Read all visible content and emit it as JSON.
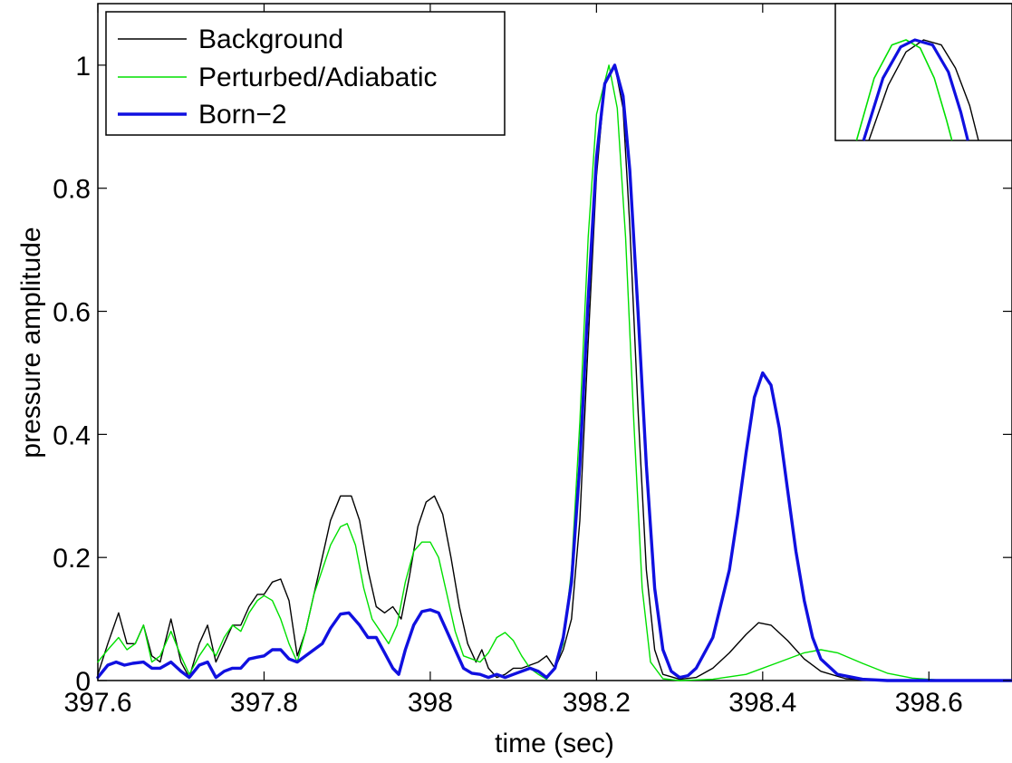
{
  "chart_data": {
    "type": "line",
    "xlabel": "time (sec)",
    "ylabel": "pressure amplitude",
    "xlim": [
      397.6,
      398.7
    ],
    "ylim": [
      0,
      1.1
    ],
    "xticks": [
      397.6,
      397.8,
      398,
      398.2,
      398.4,
      398.6
    ],
    "xtick_labels": [
      "397.6",
      "397.8",
      "398",
      "398.2",
      "398.4",
      "398.6"
    ],
    "yticks": [
      0,
      0.2,
      0.4,
      0.6,
      0.8,
      1
    ],
    "ytick_labels": [
      "0",
      "0.2",
      "0.4",
      "0.6",
      "0.8",
      "1"
    ],
    "grid": false,
    "legend_position": "top-left",
    "inset": "zoomed view of main peak near 398.22 s (top-right)",
    "series": [
      {
        "name": "Background",
        "color": "#000000",
        "line_width": "thin",
        "points": [
          [
            397.6,
            0.01
          ],
          [
            397.612,
            0.06
          ],
          [
            397.625,
            0.11
          ],
          [
            397.635,
            0.06
          ],
          [
            397.645,
            0.06
          ],
          [
            397.655,
            0.09
          ],
          [
            397.665,
            0.04
          ],
          [
            397.675,
            0.03
          ],
          [
            397.688,
            0.1
          ],
          [
            397.7,
            0.03
          ],
          [
            397.71,
            0.005
          ],
          [
            397.722,
            0.06
          ],
          [
            397.732,
            0.09
          ],
          [
            397.742,
            0.03
          ],
          [
            397.752,
            0.06
          ],
          [
            397.762,
            0.09
          ],
          [
            397.772,
            0.09
          ],
          [
            397.782,
            0.12
          ],
          [
            397.792,
            0.14
          ],
          [
            397.8,
            0.14
          ],
          [
            397.81,
            0.16
          ],
          [
            397.82,
            0.165
          ],
          [
            397.83,
            0.13
          ],
          [
            397.84,
            0.04
          ],
          [
            397.85,
            0.08
          ],
          [
            397.86,
            0.14
          ],
          [
            397.87,
            0.2
          ],
          [
            397.88,
            0.26
          ],
          [
            397.892,
            0.3
          ],
          [
            397.905,
            0.3
          ],
          [
            397.915,
            0.26
          ],
          [
            397.925,
            0.18
          ],
          [
            397.935,
            0.12
          ],
          [
            397.945,
            0.11
          ],
          [
            397.955,
            0.12
          ],
          [
            397.965,
            0.1
          ],
          [
            397.975,
            0.17
          ],
          [
            397.985,
            0.25
          ],
          [
            397.995,
            0.29
          ],
          [
            398.005,
            0.3
          ],
          [
            398.015,
            0.27
          ],
          [
            398.025,
            0.2
          ],
          [
            398.035,
            0.12
          ],
          [
            398.045,
            0.06
          ],
          [
            398.055,
            0.03
          ],
          [
            398.062,
            0.05
          ],
          [
            398.07,
            0.02
          ],
          [
            398.08,
            0.005
          ],
          [
            398.09,
            0.01
          ],
          [
            398.1,
            0.02
          ],
          [
            398.11,
            0.02
          ],
          [
            398.12,
            0.025
          ],
          [
            398.13,
            0.03
          ],
          [
            398.14,
            0.04
          ],
          [
            398.15,
            0.02
          ],
          [
            398.16,
            0.05
          ],
          [
            398.17,
            0.1
          ],
          [
            398.18,
            0.26
          ],
          [
            398.19,
            0.55
          ],
          [
            398.2,
            0.82
          ],
          [
            398.21,
            0.97
          ],
          [
            398.222,
            1.0
          ],
          [
            398.232,
            0.93
          ],
          [
            398.24,
            0.74
          ],
          [
            398.25,
            0.44
          ],
          [
            398.26,
            0.18
          ],
          [
            398.27,
            0.05
          ],
          [
            398.28,
            0.01
          ],
          [
            398.3,
            0.002
          ],
          [
            398.32,
            0.005
          ],
          [
            398.34,
            0.02
          ],
          [
            398.36,
            0.045
          ],
          [
            398.38,
            0.075
          ],
          [
            398.395,
            0.094
          ],
          [
            398.41,
            0.09
          ],
          [
            398.43,
            0.065
          ],
          [
            398.45,
            0.035
          ],
          [
            398.47,
            0.015
          ],
          [
            398.5,
            0.003
          ],
          [
            398.55,
            0.0
          ],
          [
            398.7,
            0.0
          ]
        ]
      },
      {
        "name": "Perturbed/Adiabatic",
        "color": "#00e000",
        "line_width": "thin",
        "points": [
          [
            397.6,
            0.03
          ],
          [
            397.612,
            0.05
          ],
          [
            397.625,
            0.07
          ],
          [
            397.635,
            0.05
          ],
          [
            397.645,
            0.06
          ],
          [
            397.655,
            0.09
          ],
          [
            397.665,
            0.03
          ],
          [
            397.675,
            0.04
          ],
          [
            397.688,
            0.08
          ],
          [
            397.7,
            0.04
          ],
          [
            397.71,
            0.01
          ],
          [
            397.722,
            0.04
          ],
          [
            397.732,
            0.06
          ],
          [
            397.742,
            0.04
          ],
          [
            397.752,
            0.07
          ],
          [
            397.762,
            0.09
          ],
          [
            397.772,
            0.08
          ],
          [
            397.782,
            0.11
          ],
          [
            397.792,
            0.13
          ],
          [
            397.8,
            0.138
          ],
          [
            397.81,
            0.13
          ],
          [
            397.82,
            0.1
          ],
          [
            397.83,
            0.06
          ],
          [
            397.84,
            0.03
          ],
          [
            397.85,
            0.08
          ],
          [
            397.86,
            0.14
          ],
          [
            397.87,
            0.18
          ],
          [
            397.88,
            0.22
          ],
          [
            397.892,
            0.25
          ],
          [
            397.9,
            0.255
          ],
          [
            397.91,
            0.22
          ],
          [
            397.92,
            0.15
          ],
          [
            397.93,
            0.1
          ],
          [
            397.94,
            0.08
          ],
          [
            397.95,
            0.06
          ],
          [
            397.96,
            0.09
          ],
          [
            397.97,
            0.16
          ],
          [
            397.98,
            0.21
          ],
          [
            397.99,
            0.225
          ],
          [
            398.0,
            0.225
          ],
          [
            398.01,
            0.2
          ],
          [
            398.02,
            0.14
          ],
          [
            398.03,
            0.08
          ],
          [
            398.04,
            0.04
          ],
          [
            398.05,
            0.035
          ],
          [
            398.06,
            0.03
          ],
          [
            398.07,
            0.045
          ],
          [
            398.08,
            0.07
          ],
          [
            398.09,
            0.078
          ],
          [
            398.1,
            0.065
          ],
          [
            398.11,
            0.04
          ],
          [
            398.12,
            0.02
          ],
          [
            398.13,
            0.01
          ],
          [
            398.14,
            0.002
          ],
          [
            398.15,
            0.02
          ],
          [
            398.16,
            0.06
          ],
          [
            398.17,
            0.18
          ],
          [
            398.18,
            0.42
          ],
          [
            398.19,
            0.72
          ],
          [
            398.2,
            0.92
          ],
          [
            398.215,
            1.0
          ],
          [
            398.225,
            0.93
          ],
          [
            398.235,
            0.72
          ],
          [
            398.245,
            0.42
          ],
          [
            398.255,
            0.15
          ],
          [
            398.265,
            0.03
          ],
          [
            398.28,
            0.003
          ],
          [
            398.3,
            0.0
          ],
          [
            398.34,
            0.002
          ],
          [
            398.38,
            0.01
          ],
          [
            398.42,
            0.03
          ],
          [
            398.45,
            0.045
          ],
          [
            398.47,
            0.05
          ],
          [
            398.49,
            0.045
          ],
          [
            398.52,
            0.028
          ],
          [
            398.55,
            0.012
          ],
          [
            398.58,
            0.004
          ],
          [
            398.62,
            0.0
          ],
          [
            398.7,
            0.0
          ]
        ]
      },
      {
        "name": "Born−2",
        "color": "#1010e0",
        "line_width": "thick",
        "points": [
          [
            397.6,
            0.005
          ],
          [
            397.612,
            0.025
          ],
          [
            397.622,
            0.03
          ],
          [
            397.632,
            0.025
          ],
          [
            397.642,
            0.028
          ],
          [
            397.655,
            0.03
          ],
          [
            397.665,
            0.02
          ],
          [
            397.675,
            0.02
          ],
          [
            397.688,
            0.03
          ],
          [
            397.7,
            0.015
          ],
          [
            397.71,
            0.005
          ],
          [
            397.722,
            0.025
          ],
          [
            397.732,
            0.03
          ],
          [
            397.742,
            0.005
          ],
          [
            397.752,
            0.015
          ],
          [
            397.762,
            0.02
          ],
          [
            397.772,
            0.02
          ],
          [
            397.782,
            0.035
          ],
          [
            397.792,
            0.038
          ],
          [
            397.8,
            0.04
          ],
          [
            397.81,
            0.05
          ],
          [
            397.82,
            0.05
          ],
          [
            397.83,
            0.035
          ],
          [
            397.84,
            0.03
          ],
          [
            397.85,
            0.04
          ],
          [
            397.86,
            0.05
          ],
          [
            397.87,
            0.06
          ],
          [
            397.88,
            0.085
          ],
          [
            397.892,
            0.108
          ],
          [
            397.902,
            0.11
          ],
          [
            397.915,
            0.09
          ],
          [
            397.925,
            0.07
          ],
          [
            397.935,
            0.07
          ],
          [
            397.945,
            0.045
          ],
          [
            397.955,
            0.02
          ],
          [
            397.962,
            0.01
          ],
          [
            397.97,
            0.05
          ],
          [
            397.98,
            0.09
          ],
          [
            397.99,
            0.112
          ],
          [
            398.0,
            0.115
          ],
          [
            398.01,
            0.11
          ],
          [
            398.02,
            0.08
          ],
          [
            398.03,
            0.05
          ],
          [
            398.04,
            0.02
          ],
          [
            398.05,
            0.012
          ],
          [
            398.06,
            0.01
          ],
          [
            398.07,
            0.005
          ],
          [
            398.08,
            0.01
          ],
          [
            398.09,
            0.005
          ],
          [
            398.1,
            0.01
          ],
          [
            398.11,
            0.015
          ],
          [
            398.12,
            0.02
          ],
          [
            398.13,
            0.015
          ],
          [
            398.14,
            0.005
          ],
          [
            398.15,
            0.02
          ],
          [
            398.16,
            0.07
          ],
          [
            398.17,
            0.16
          ],
          [
            398.18,
            0.35
          ],
          [
            398.19,
            0.62
          ],
          [
            398.2,
            0.85
          ],
          [
            398.21,
            0.97
          ],
          [
            398.222,
            1.0
          ],
          [
            398.232,
            0.95
          ],
          [
            398.24,
            0.83
          ],
          [
            398.25,
            0.6
          ],
          [
            398.26,
            0.35
          ],
          [
            398.27,
            0.15
          ],
          [
            398.28,
            0.05
          ],
          [
            398.29,
            0.015
          ],
          [
            398.3,
            0.005
          ],
          [
            398.31,
            0.008
          ],
          [
            398.32,
            0.02
          ],
          [
            398.34,
            0.07
          ],
          [
            398.36,
            0.18
          ],
          [
            398.37,
            0.27
          ],
          [
            398.38,
            0.37
          ],
          [
            398.39,
            0.46
          ],
          [
            398.4,
            0.5
          ],
          [
            398.41,
            0.48
          ],
          [
            398.42,
            0.41
          ],
          [
            398.43,
            0.31
          ],
          [
            398.44,
            0.21
          ],
          [
            398.45,
            0.13
          ],
          [
            398.46,
            0.07
          ],
          [
            398.47,
            0.035
          ],
          [
            398.49,
            0.01
          ],
          [
            398.52,
            0.002
          ],
          [
            398.55,
            0.0
          ],
          [
            398.7,
            0.0
          ]
        ]
      }
    ],
    "inset_series": [
      {
        "name": "Background",
        "color": "#000000",
        "width": 1.4,
        "points": [
          [
            0.19,
            0.0
          ],
          [
            0.3,
            0.55
          ],
          [
            0.4,
            0.88
          ],
          [
            0.5,
            1.0
          ],
          [
            0.6,
            0.95
          ],
          [
            0.68,
            0.72
          ],
          [
            0.76,
            0.35
          ],
          [
            0.81,
            0.0
          ]
        ]
      },
      {
        "name": "Perturbed/Adiabatic",
        "color": "#00e000",
        "width": 1.6,
        "points": [
          [
            0.12,
            0.0
          ],
          [
            0.22,
            0.62
          ],
          [
            0.32,
            0.95
          ],
          [
            0.4,
            1.0
          ],
          [
            0.48,
            0.92
          ],
          [
            0.56,
            0.62
          ],
          [
            0.63,
            0.2
          ],
          [
            0.66,
            0.0
          ]
        ]
      },
      {
        "name": "Born−2",
        "color": "#1010e0",
        "width": 3.2,
        "points": [
          [
            0.16,
            0.0
          ],
          [
            0.27,
            0.62
          ],
          [
            0.37,
            0.93
          ],
          [
            0.45,
            1.0
          ],
          [
            0.55,
            0.95
          ],
          [
            0.64,
            0.68
          ],
          [
            0.71,
            0.28
          ],
          [
            0.75,
            0.0
          ]
        ]
      }
    ]
  }
}
